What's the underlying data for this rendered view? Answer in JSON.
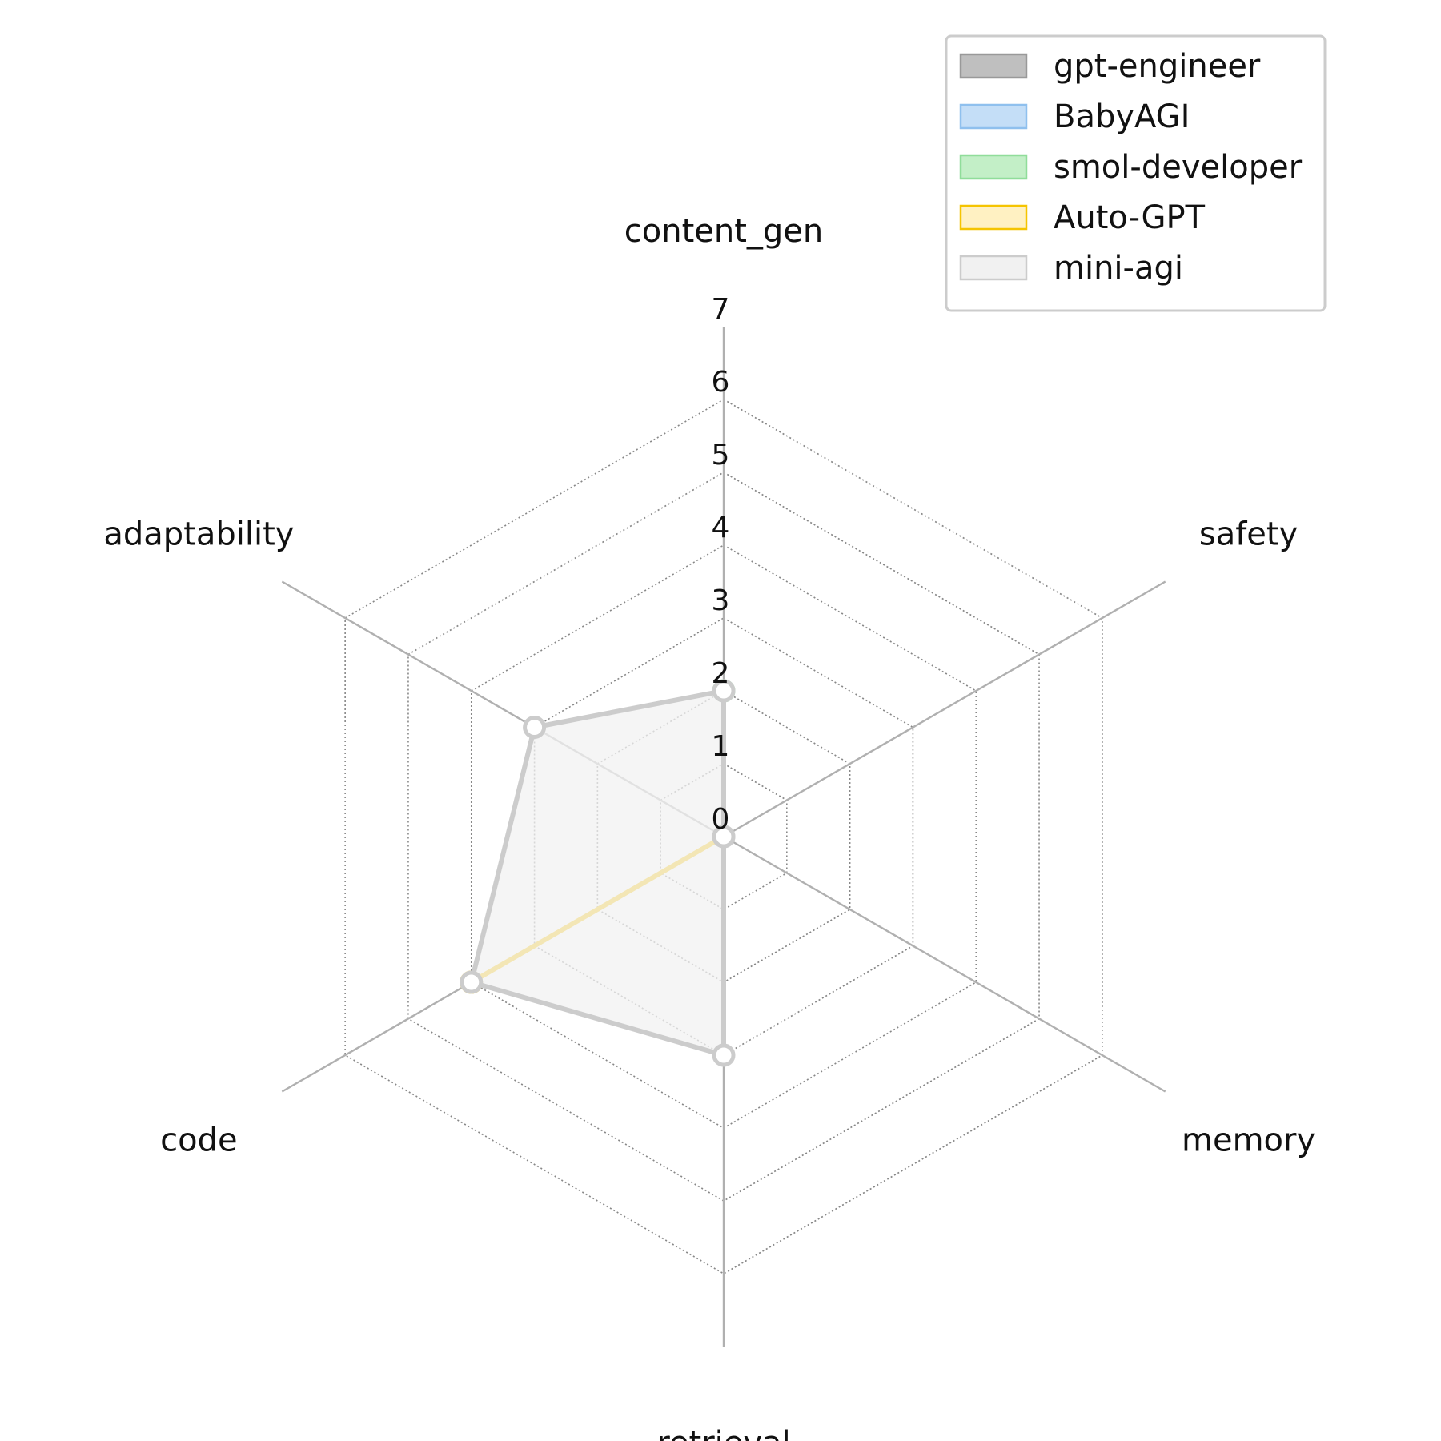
{
  "chart_data": {
    "type": "radar",
    "axes": [
      "content_gen",
      "safety",
      "memory",
      "retrieval",
      "code",
      "adaptability"
    ],
    "rlim": [
      0,
      7
    ],
    "rticks": [
      0,
      1,
      2,
      3,
      4,
      5,
      6,
      7
    ],
    "grid": "dotted",
    "legend_position": "top-right",
    "series": [
      {
        "name": "gpt-engineer",
        "color": "#999999",
        "fill": "#bfbfbf",
        "values": [
          0,
          0,
          0,
          0,
          0,
          0
        ]
      },
      {
        "name": "BabyAGI",
        "color": "#8fc0ee",
        "fill": "#c4def7",
        "values": [
          0,
          0,
          0,
          0,
          0,
          0
        ]
      },
      {
        "name": "smol-developer",
        "color": "#90dd9a",
        "fill": "#c3efc7",
        "values": [
          2,
          0,
          0,
          0,
          0,
          0
        ]
      },
      {
        "name": "Auto-GPT",
        "color": "#f5c400",
        "fill": "#fff1c2",
        "values": [
          0,
          0,
          0,
          0,
          4,
          0
        ]
      },
      {
        "name": "mini-agi",
        "color": "#cccccc",
        "fill": "#f1f1f1",
        "values": [
          2,
          0,
          0,
          3,
          4,
          3
        ]
      }
    ]
  }
}
